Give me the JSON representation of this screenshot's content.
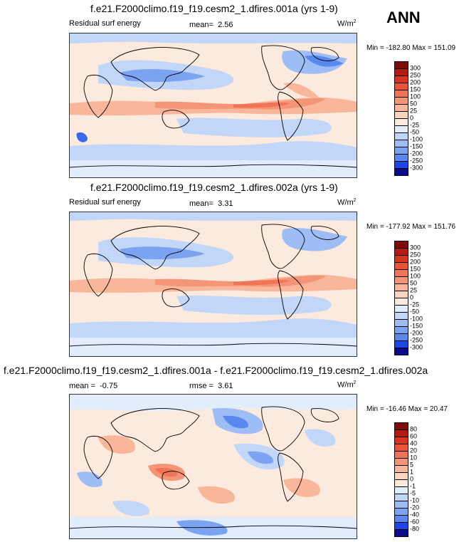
{
  "season_label": "ANN",
  "units_base": "W/m",
  "units_exp": "2",
  "palette": [
    "#0c0a8c",
    "#1424c8",
    "#1f46e6",
    "#3a68ea",
    "#5b88ee",
    "#7ba3f1",
    "#9ebdf5",
    "#c2d6f8",
    "#e1ecfc",
    "#fdeadf",
    "#fbd4be",
    "#f8b69a",
    "#f59578",
    "#f27456",
    "#ea5335",
    "#d93420",
    "#b41c12",
    "#7e0c0a"
  ],
  "panels": [
    {
      "title": "f.e21.F2000climo.f19_f19.cesm2_1.dfires.001a (yrs 1-9)",
      "left_label": "Residual surf energy",
      "stat_label": "mean=",
      "stat_value": "2.56",
      "minmax": "Min = -182.80 Max = 151.09",
      "colorbar_levels": [
        "300",
        "250",
        "200",
        "150",
        "100",
        "50",
        "25",
        "0",
        "-25",
        "-50",
        "-100",
        "-150",
        "-200",
        "-250",
        "-300"
      ]
    },
    {
      "title": "f.e21.F2000climo.f19_f19.cesm2_1.dfires.002a (yrs 1-9)",
      "left_label": "Residual surf energy",
      "stat_label": "mean=",
      "stat_value": "3.31",
      "minmax": "Min = -177.92 Max = 151.76",
      "colorbar_levels": [
        "300",
        "250",
        "200",
        "150",
        "100",
        "50",
        "25",
        "0",
        "-25",
        "-50",
        "-100",
        "-150",
        "-200",
        "-250",
        "-300"
      ]
    },
    {
      "title": "f.e21.F2000climo.f19_f19.cesm2_1.dfires.001a - f.e21.F2000climo.f19_f19.cesm2_1.dfires.002a",
      "left_label": "mean =",
      "left_value": "-0.75",
      "stat_label": "rmse =",
      "stat_value": "3.61",
      "minmax": "Min = -16.46 Max = 20.47",
      "colorbar_levels": [
        "80",
        "60",
        "40",
        "20",
        "10",
        "5",
        "1",
        "0",
        "-1",
        "-5",
        "-10",
        "-20",
        "-40",
        "-60",
        "-80"
      ]
    }
  ]
}
